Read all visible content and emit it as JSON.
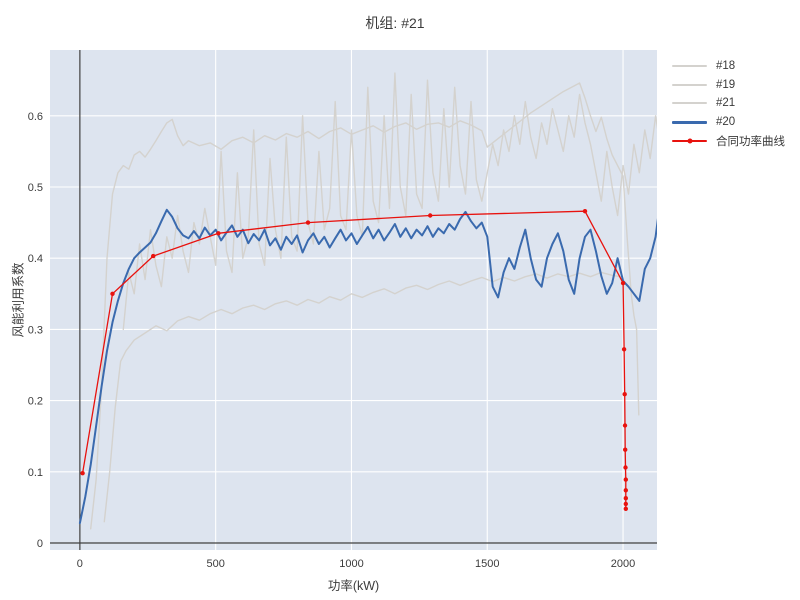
{
  "figure": {
    "background": "#ffffff",
    "plot_background": "#dde4ef",
    "grid_color": "#ffffff",
    "axis_line_color": "#3f3f3f",
    "text_color": "#3c3c3c"
  },
  "chart_data": {
    "type": "line",
    "title": "机组: #21",
    "xlabel": "功率(kW)",
    "ylabel": "风能利用系数",
    "xlim": [
      -110,
      2125
    ],
    "ylim": [
      -0.0098,
      0.6924
    ],
    "grid": true,
    "legend_position": "outside right top",
    "x_ticks": [
      0,
      500,
      1000,
      1500,
      2000
    ],
    "x_tick_labels": [
      "0",
      "500",
      "1000",
      "1500",
      "2000"
    ],
    "y_ticks": [
      0,
      0.1,
      0.2,
      0.3,
      0.4,
      0.5,
      0.6
    ],
    "y_tick_labels": [
      "0",
      "0.1",
      "0.2",
      "0.3",
      "0.4",
      "0.5",
      "0.6"
    ],
    "zero_axis_lines": true,
    "series": [
      {
        "name": "#18",
        "color": "#d4d2ce",
        "width": 1.4,
        "marker": null,
        "x": [
          40,
          60,
          80,
          100,
          120,
          140,
          160,
          180,
          200,
          220,
          240,
          260,
          280,
          300,
          320,
          340,
          360,
          380,
          400,
          440,
          480,
          520,
          560,
          600,
          640,
          680,
          720,
          760,
          800,
          840,
          880,
          920,
          960,
          1000,
          1040,
          1080,
          1120,
          1160,
          1200,
          1240,
          1280,
          1320,
          1360,
          1400,
          1440,
          1480,
          1500,
          1540,
          1580,
          1620,
          1660,
          1700,
          1740,
          1780,
          1820,
          1840,
          1860,
          1880,
          1900,
          1920,
          1940,
          1960,
          1980,
          2000,
          2015,
          2030,
          2040,
          2050,
          2058
        ],
        "y": [
          0.02,
          0.09,
          0.22,
          0.4,
          0.49,
          0.52,
          0.53,
          0.525,
          0.545,
          0.55,
          0.542,
          0.553,
          0.565,
          0.578,
          0.59,
          0.595,
          0.572,
          0.558,
          0.565,
          0.558,
          0.562,
          0.553,
          0.565,
          0.57,
          0.562,
          0.572,
          0.566,
          0.575,
          0.57,
          0.578,
          0.568,
          0.578,
          0.583,
          0.574,
          0.58,
          0.586,
          0.577,
          0.585,
          0.59,
          0.581,
          0.588,
          0.59,
          0.584,
          0.593,
          0.587,
          0.579,
          0.556,
          0.568,
          0.58,
          0.592,
          0.604,
          0.614,
          0.624,
          0.634,
          0.642,
          0.646,
          0.625,
          0.6,
          0.578,
          0.598,
          0.568,
          0.545,
          0.53,
          0.515,
          0.43,
          0.35,
          0.32,
          0.3,
          0.18
        ]
      },
      {
        "name": "#19",
        "color": "#d4d2ce",
        "width": 1.4,
        "marker": null,
        "x": [
          90,
          110,
          130,
          150,
          170,
          200,
          240,
          280,
          320,
          360,
          400,
          440,
          480,
          520,
          560,
          600,
          640,
          680,
          720,
          760,
          800,
          840,
          880,
          920,
          960,
          1000,
          1040,
          1080,
          1120,
          1160,
          1200,
          1240,
          1280,
          1320,
          1360,
          1400,
          1440,
          1480,
          1520,
          1560,
          1600,
          1640,
          1680,
          1720,
          1760,
          1800,
          1840,
          1880,
          1920,
          1960,
          1990
        ],
        "y": [
          0.03,
          0.1,
          0.19,
          0.255,
          0.27,
          0.285,
          0.295,
          0.305,
          0.298,
          0.312,
          0.318,
          0.313,
          0.322,
          0.328,
          0.322,
          0.33,
          0.334,
          0.328,
          0.336,
          0.34,
          0.334,
          0.342,
          0.337,
          0.346,
          0.341,
          0.35,
          0.345,
          0.352,
          0.357,
          0.35,
          0.358,
          0.362,
          0.356,
          0.363,
          0.368,
          0.362,
          0.368,
          0.373,
          0.367,
          0.373,
          0.368,
          0.374,
          0.378,
          0.372,
          0.378,
          0.374,
          0.379,
          0.374,
          0.38,
          0.376,
          0.374
        ]
      },
      {
        "name": "#21",
        "color": "#d4d2ce",
        "width": 1.4,
        "marker": null,
        "x0": 160,
        "dx": 20,
        "y": [
          0.3,
          0.38,
          0.35,
          0.42,
          0.37,
          0.44,
          0.39,
          0.36,
          0.43,
          0.4,
          0.46,
          0.41,
          0.38,
          0.45,
          0.42,
          0.47,
          0.43,
          0.39,
          0.55,
          0.41,
          0.38,
          0.52,
          0.4,
          0.43,
          0.58,
          0.42,
          0.39,
          0.54,
          0.44,
          0.4,
          0.57,
          0.43,
          0.41,
          0.6,
          0.45,
          0.42,
          0.55,
          0.44,
          0.47,
          0.62,
          0.46,
          0.44,
          0.58,
          0.46,
          0.43,
          0.64,
          0.48,
          0.45,
          0.6,
          0.47,
          0.66,
          0.5,
          0.46,
          0.63,
          0.49,
          0.47,
          0.65,
          0.52,
          0.48,
          0.61,
          0.5,
          0.64,
          0.53,
          0.49,
          0.62,
          0.51,
          0.48,
          0.52,
          0.56,
          0.53,
          0.58,
          0.55,
          0.6,
          0.56,
          0.62,
          0.57,
          0.54,
          0.59,
          0.56,
          0.61,
          0.58,
          0.55,
          0.6,
          0.57,
          0.63,
          0.59,
          0.56,
          0.52,
          0.48,
          0.55,
          0.5,
          0.46,
          0.53,
          0.49,
          0.56,
          0.52,
          0.58,
          0.54,
          0.6,
          0.55
        ]
      },
      {
        "name": "#20",
        "color": "#3a6aae",
        "width": 2,
        "marker": null,
        "x0": 0,
        "dx": 20,
        "y": [
          0.028,
          0.065,
          0.11,
          0.165,
          0.22,
          0.27,
          0.31,
          0.34,
          0.365,
          0.385,
          0.4,
          0.408,
          0.415,
          0.422,
          0.435,
          0.452,
          0.468,
          0.458,
          0.442,
          0.432,
          0.428,
          0.438,
          0.428,
          0.443,
          0.432,
          0.44,
          0.425,
          0.436,
          0.446,
          0.43,
          0.44,
          0.421,
          0.434,
          0.425,
          0.44,
          0.418,
          0.428,
          0.412,
          0.43,
          0.42,
          0.432,
          0.408,
          0.425,
          0.435,
          0.42,
          0.43,
          0.415,
          0.428,
          0.44,
          0.425,
          0.435,
          0.42,
          0.432,
          0.444,
          0.428,
          0.44,
          0.425,
          0.436,
          0.448,
          0.43,
          0.442,
          0.428,
          0.44,
          0.432,
          0.445,
          0.43,
          0.442,
          0.435,
          0.448,
          0.44,
          0.455,
          0.465,
          0.452,
          0.442,
          0.45,
          0.43,
          0.36,
          0.345,
          0.38,
          0.4,
          0.385,
          0.415,
          0.44,
          0.4,
          0.37,
          0.36,
          0.4,
          0.42,
          0.435,
          0.41,
          0.37,
          0.35,
          0.4,
          0.43,
          0.44,
          0.41,
          0.375,
          0.35,
          0.365,
          0.4,
          0.368,
          0.36,
          0.35,
          0.34,
          0.385,
          0.4,
          0.43,
          0.49
        ]
      },
      {
        "name": "合同功率曲线",
        "color": "#e8120e",
        "width": 1.3,
        "marker": "circle",
        "x": [
          10,
          120,
          270,
          510,
          840,
          1290,
          1860,
          2000,
          2004,
          2006,
          2007,
          2008,
          2009,
          2010,
          2010,
          2010,
          2010,
          2010
        ],
        "y": [
          0.098,
          0.35,
          0.403,
          0.435,
          0.45,
          0.46,
          0.466,
          0.365,
          0.272,
          0.209,
          0.165,
          0.131,
          0.106,
          0.089,
          0.074,
          0.063,
          0.055,
          0.048
        ]
      }
    ]
  }
}
